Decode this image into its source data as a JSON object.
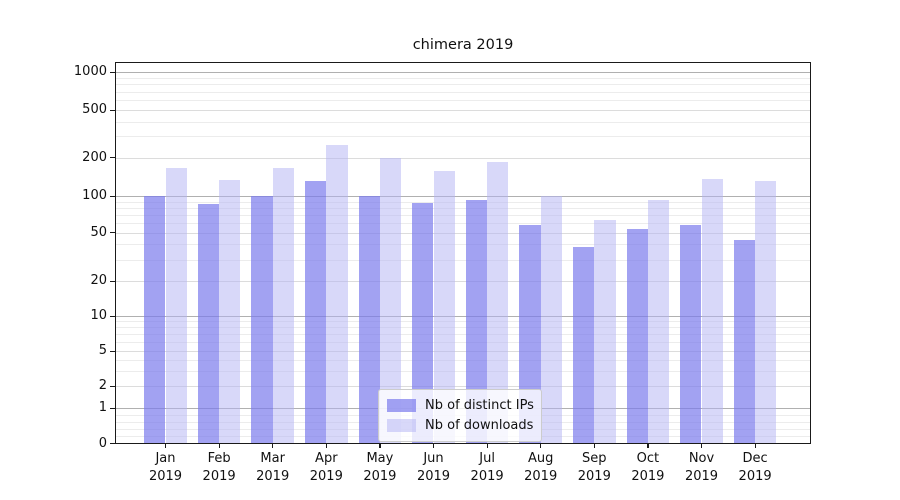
{
  "title": "chimera 2019",
  "chart_data": {
    "type": "bar",
    "title": "chimera 2019",
    "categories": [
      "Jan",
      "Feb",
      "Mar",
      "Apr",
      "May",
      "Jun",
      "Jul",
      "Aug",
      "Sep",
      "Oct",
      "Nov",
      "Dec"
    ],
    "year_label": "2019",
    "series": [
      {
        "name": "Nb of distinct IPs",
        "color": "rgba(122,122,237,0.70)",
        "values": [
          100,
          86,
          100,
          130,
          100,
          88,
          92,
          58,
          38,
          53,
          58,
          43
        ]
      },
      {
        "name": "Nb of downloads",
        "color": "rgba(178,178,244,0.50)",
        "values": [
          165,
          134,
          165,
          255,
          197,
          156,
          183,
          100,
          63,
          93,
          136,
          132
        ]
      }
    ],
    "yscale": "symlog",
    "yticks": [
      0,
      1,
      2,
      5,
      10,
      20,
      50,
      100,
      200,
      500,
      1000
    ],
    "ylim": [
      0,
      1200
    ],
    "xlabel": "",
    "ylabel": "",
    "grid": true,
    "legend_position": "lower center"
  },
  "colors": {
    "grid_major": "#b0b0b0",
    "grid_mid": "#dcdcdc",
    "grid_minor": "#ececec",
    "spine": "#1a1a1a"
  }
}
